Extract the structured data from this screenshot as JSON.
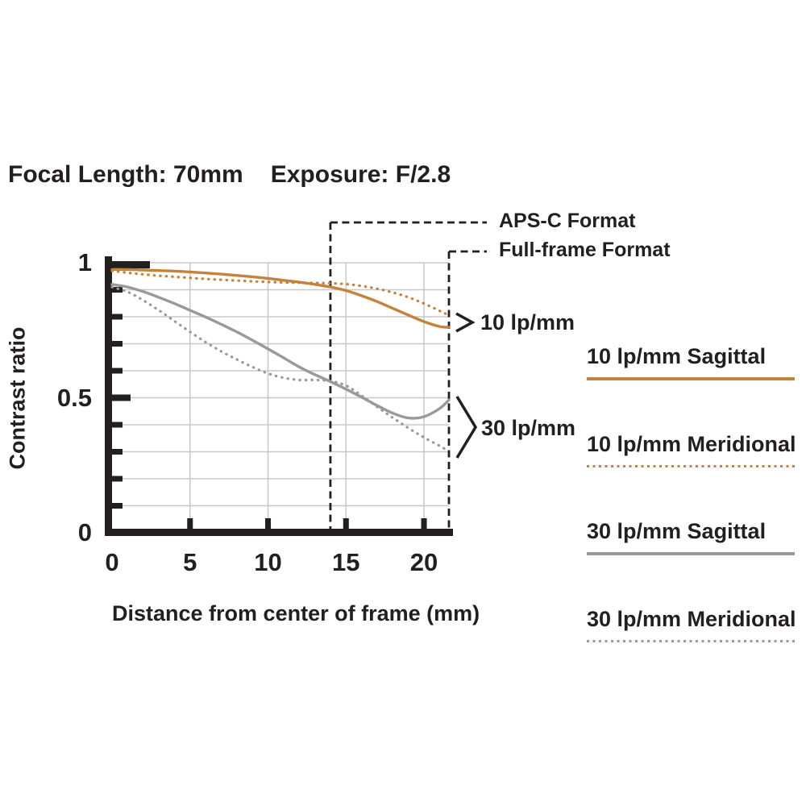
{
  "title": {
    "focal_length": "Focal Length: 70mm",
    "exposure": "Exposure: F/2.8"
  },
  "colors": {
    "ink": "#231f20",
    "accent_orange": "#c5823c",
    "curve_gray": "#999999",
    "gridline": "#c8c8c8",
    "background": "#ffffff"
  },
  "chart_data": {
    "type": "line",
    "title": "MTF chart at Focal Length 70mm, Exposure F/2.8",
    "xlabel": "Distance from center of frame (mm)",
    "ylabel": "Contrast ratio",
    "xlim": [
      0,
      21.6
    ],
    "ylim": [
      0,
      1
    ],
    "x_ticks": [
      0,
      5,
      10,
      15,
      20
    ],
    "y_major_ticks": [
      0,
      0.5,
      1
    ],
    "y_minor_tick_step": 0.1,
    "grid": true,
    "legend_position": "right",
    "annotations": {
      "aps_c_label": "APS-C Format",
      "aps_c_x_mm": 14.0,
      "full_frame_label": "Full-frame Format",
      "full_frame_x_mm": 21.6,
      "group_10": "10 lp/mm",
      "group_30": "30 lp/mm"
    },
    "x_mm": [
      0,
      1,
      2,
      3,
      4,
      5,
      6,
      7,
      8,
      9,
      10,
      11,
      12,
      13,
      14,
      15,
      16,
      17,
      18,
      19,
      20,
      21,
      21.6
    ],
    "series": [
      {
        "name": "10 lp/mm Sagittal",
        "color": "#c5823c",
        "style": "solid",
        "values": [
          0.975,
          0.975,
          0.973,
          0.971,
          0.969,
          0.966,
          0.962,
          0.958,
          0.953,
          0.948,
          0.942,
          0.935,
          0.928,
          0.92,
          0.91,
          0.897,
          0.878,
          0.856,
          0.831,
          0.806,
          0.782,
          0.764,
          0.761
        ]
      },
      {
        "name": "10 lp/mm Meridional",
        "color": "#c5823c",
        "style": "dotted",
        "values": [
          0.97,
          0.963,
          0.957,
          0.952,
          0.948,
          0.944,
          0.94,
          0.937,
          0.934,
          0.931,
          0.929,
          0.927,
          0.926,
          0.925,
          0.924,
          0.921,
          0.914,
          0.904,
          0.89,
          0.872,
          0.849,
          0.822,
          0.805
        ]
      },
      {
        "name": "30 lp/mm Sagittal",
        "color": "#999999",
        "style": "solid",
        "values": [
          0.92,
          0.91,
          0.893,
          0.872,
          0.849,
          0.824,
          0.799,
          0.772,
          0.744,
          0.713,
          0.681,
          0.648,
          0.614,
          0.586,
          0.56,
          0.532,
          0.502,
          0.471,
          0.443,
          0.425,
          0.43,
          0.46,
          0.492
        ]
      },
      {
        "name": "30 lp/mm Meridional",
        "color": "#999999",
        "style": "dotted",
        "values": [
          0.91,
          0.892,
          0.861,
          0.824,
          0.784,
          0.744,
          0.706,
          0.672,
          0.642,
          0.614,
          0.59,
          0.574,
          0.566,
          0.566,
          0.562,
          0.545,
          0.508,
          0.466,
          0.426,
          0.388,
          0.353,
          0.322,
          0.302
        ]
      }
    ]
  }
}
